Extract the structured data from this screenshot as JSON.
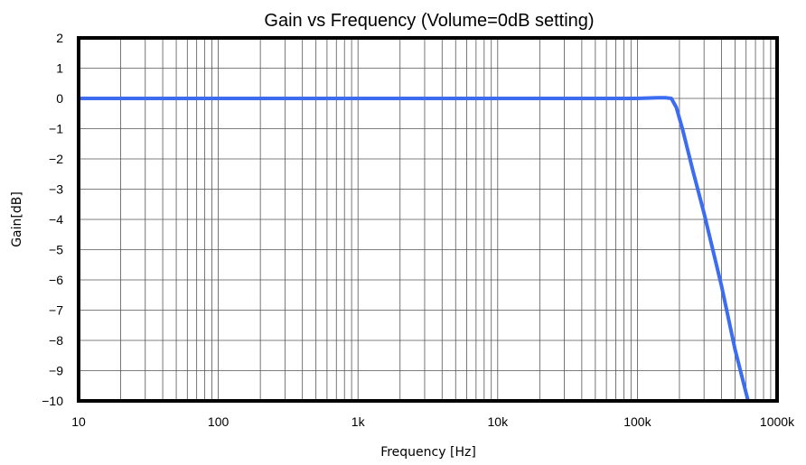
{
  "chart_data": {
    "type": "line",
    "title": "Gain vs Frequency (Volume=0dB setting)",
    "xlabel": "Frequency [Hz]",
    "ylabel": "Gain[dB]",
    "x_scale": "log",
    "xlim": [
      10,
      1000000
    ],
    "ylim": [
      -10,
      2
    ],
    "x_ticks": [
      10,
      100,
      1000,
      10000,
      100000,
      1000000
    ],
    "x_tick_labels": [
      "10",
      "100",
      "1k",
      "10k",
      "100k",
      "1000k"
    ],
    "y_ticks": [
      2,
      1,
      0,
      -1,
      -2,
      -3,
      -4,
      -5,
      -6,
      -7,
      -8,
      -9,
      -10
    ],
    "y_tick_labels": [
      "2",
      "1",
      "0",
      "−1",
      "−2",
      "−3",
      "−4",
      "−5",
      "−6",
      "−7",
      "−8",
      "−9",
      "−10"
    ],
    "grid": true,
    "legend": "none",
    "series": [
      {
        "color": "#3c6cf0",
        "x": [
          10,
          100,
          1000,
          10000,
          100000,
          140000,
          160000,
          175000,
          190000,
          210000,
          250000,
          300000,
          400000,
          500000,
          620000
        ],
        "y": [
          0,
          0,
          0,
          0,
          0,
          0.02,
          0.02,
          0,
          -0.3,
          -1.0,
          -2.4,
          -3.8,
          -6.2,
          -8.3,
          -10
        ]
      }
    ]
  }
}
